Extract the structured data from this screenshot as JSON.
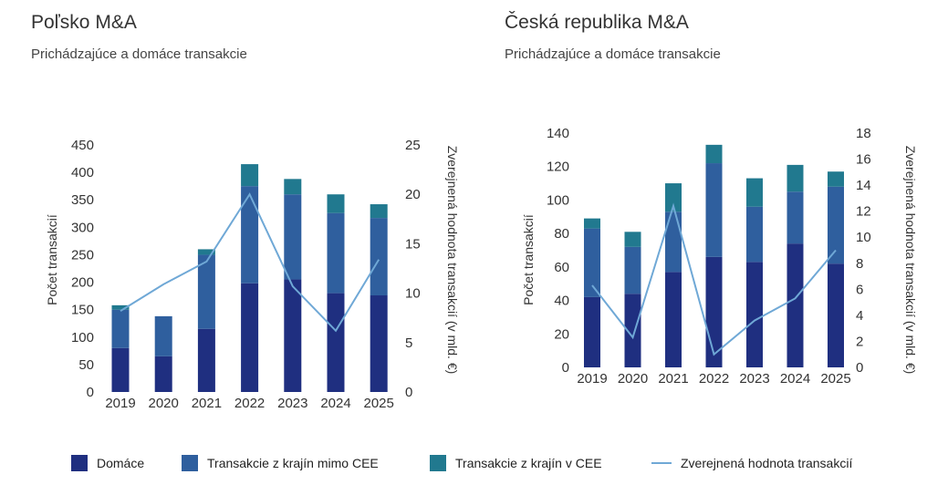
{
  "colors": {
    "domestic": "#1f2f80",
    "non_cee": "#2f5f9e",
    "cee": "#21798f",
    "value_line": "#6fa8d6"
  },
  "legend": {
    "domestic": "Domáce",
    "non_cee": "Transakcie z krajín mimo CEE",
    "cee": "Transakcie z krajín v CEE",
    "value_line": "Zverejnená hodnota transakcií"
  },
  "chart_data": [
    {
      "type": "bar",
      "stacked": true,
      "title": "Poľsko M&A",
      "subtitle": "Prichádzajúce a domáce transakcie",
      "ylabel": "Počet transakcií",
      "y2label": "Zverejnená hodnota transakcií (v mld. €)",
      "categories": [
        "2019",
        "2020",
        "2021",
        "2022",
        "2023",
        "2024",
        "2025"
      ],
      "ylim": [
        0,
        450
      ],
      "yticks": [
        0,
        50,
        100,
        150,
        200,
        250,
        300,
        350,
        400,
        450
      ],
      "y2lim": [
        0,
        25
      ],
      "y2ticks": [
        0,
        5,
        10,
        15,
        20,
        25
      ],
      "series": [
        {
          "name": "Domáce",
          "values": [
            80,
            65,
            115,
            198,
            205,
            180,
            176
          ]
        },
        {
          "name": "Transakcie z krajín mimo CEE",
          "values": [
            70,
            73,
            135,
            177,
            155,
            146,
            141
          ]
        },
        {
          "name": "Transakcie z krajín v CEE",
          "values": [
            8,
            0,
            10,
            40,
            28,
            34,
            25
          ]
        }
      ],
      "line": {
        "name": "Zverejnená hodnota transakcií",
        "values": [
          8.2,
          10.9,
          13.2,
          20.0,
          10.7,
          6.2,
          13.4
        ]
      }
    },
    {
      "type": "bar",
      "stacked": true,
      "title": "Česká republika M&A",
      "subtitle": "Prichádzajúce a domáce transakcie",
      "ylabel": "Počet transakcií",
      "y2label": "Zverejnená hodnota transakcií (v mld. €)",
      "categories": [
        "2019",
        "2020",
        "2021",
        "2022",
        "2023",
        "2024",
        "2025"
      ],
      "ylim": [
        0,
        140
      ],
      "yticks": [
        0,
        20,
        40,
        60,
        80,
        100,
        120,
        140
      ],
      "y2lim": [
        0,
        18
      ],
      "y2ticks": [
        0,
        2,
        4,
        6,
        8,
        10,
        12,
        14,
        16,
        18
      ],
      "series": [
        {
          "name": "Domáce",
          "values": [
            42,
            44,
            57,
            66,
            63,
            74,
            62
          ]
        },
        {
          "name": "Transakcie z krajín mimo CEE",
          "values": [
            41,
            28,
            36,
            56,
            33,
            31,
            46
          ]
        },
        {
          "name": "Transakcie z krajín v CEE",
          "values": [
            6,
            9,
            17,
            11,
            17,
            16,
            9
          ]
        }
      ],
      "line": {
        "name": "Zverejnená hodnota transakcií",
        "values": [
          6.3,
          2.3,
          12.4,
          1.0,
          3.6,
          5.3,
          9.0
        ]
      }
    }
  ]
}
